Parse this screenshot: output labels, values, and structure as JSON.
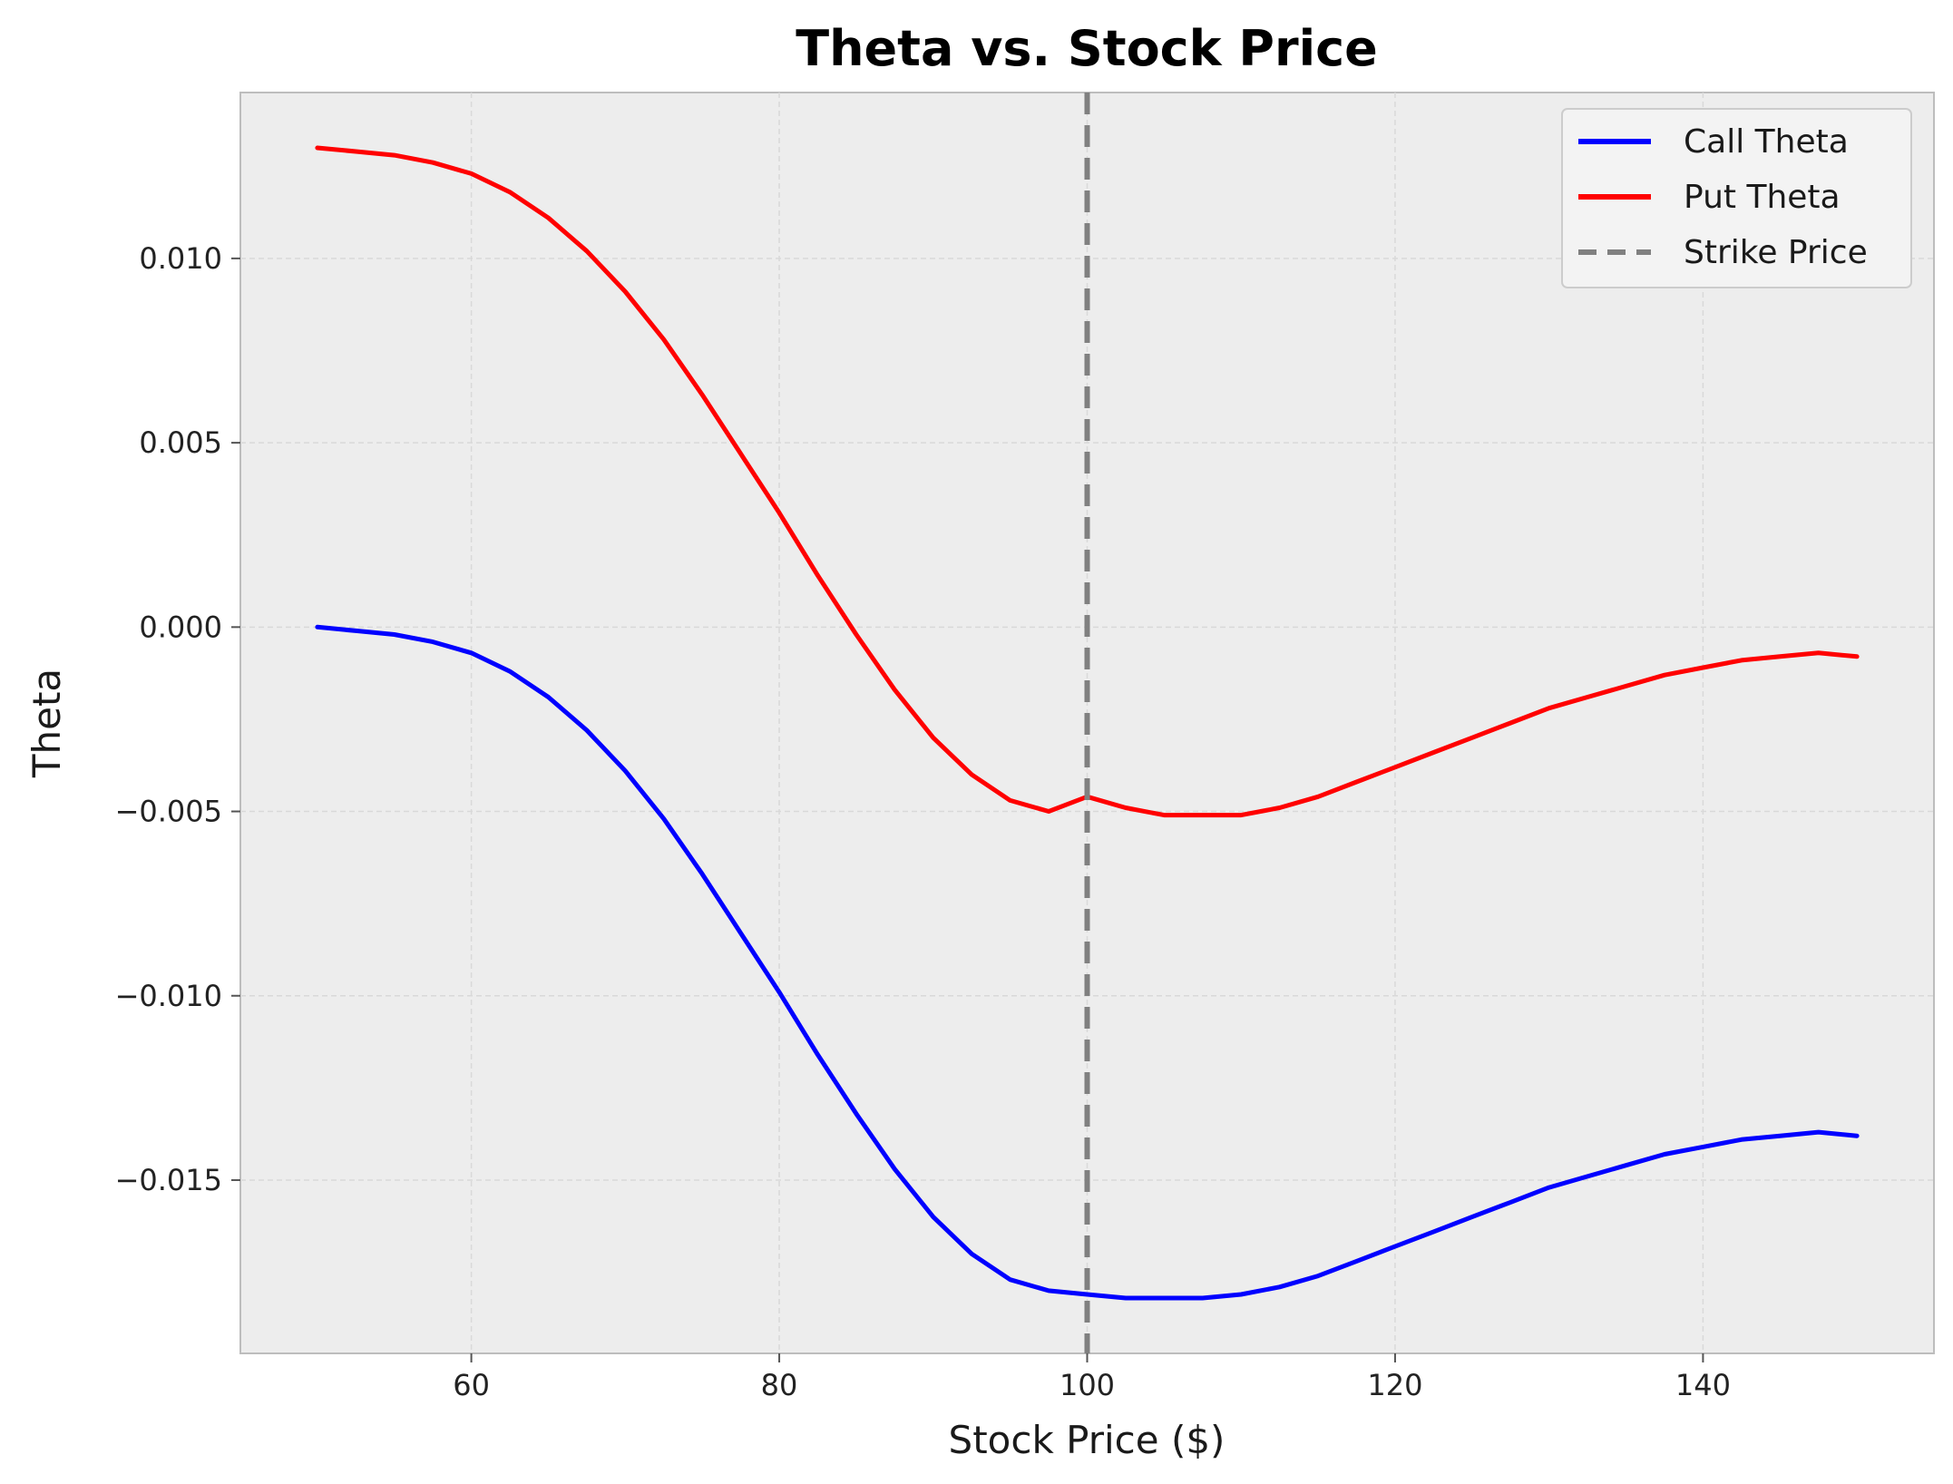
{
  "chart_data": {
    "type": "line",
    "title": "Theta vs. Stock Price",
    "xlabel": "Stock Price ($)",
    "ylabel": "Theta",
    "xlim": [
      45,
      155
    ],
    "ylim": [
      -0.0197,
      0.0145
    ],
    "xticks": [
      {
        "value": 60,
        "label": "60"
      },
      {
        "value": 80,
        "label": "80"
      },
      {
        "value": 100,
        "label": "100"
      },
      {
        "value": 120,
        "label": "120"
      },
      {
        "value": 140,
        "label": "140"
      }
    ],
    "yticks": [
      {
        "value": 0.01,
        "label": "0.010"
      },
      {
        "value": 0.005,
        "label": "0.005"
      },
      {
        "value": 0.0,
        "label": "0.000"
      },
      {
        "value": -0.005,
        "label": "−0.005"
      },
      {
        "value": -0.01,
        "label": "−0.010"
      },
      {
        "value": -0.015,
        "label": "−0.015"
      }
    ],
    "grid": true,
    "legend_position": "top-right",
    "x": [
      50,
      52.5,
      55,
      57.5,
      60,
      62.5,
      65,
      67.5,
      70,
      72.5,
      75,
      77.5,
      80,
      82.5,
      85,
      87.5,
      90,
      92.5,
      95,
      97.5,
      100,
      102.5,
      105,
      107.5,
      110,
      112.5,
      115,
      117.5,
      120,
      122.5,
      125,
      127.5,
      130,
      132.5,
      135,
      137.5,
      140,
      142.5,
      145,
      147.5,
      150
    ],
    "series": [
      {
        "name": "Call Theta",
        "color": "#0000ff",
        "values": [
          0.0,
          -0.0001,
          -0.0002,
          -0.0004,
          -0.0007,
          -0.0012,
          -0.0019,
          -0.0028,
          -0.0039,
          -0.0052,
          -0.0067,
          -0.0083,
          -0.0099,
          -0.0116,
          -0.0132,
          -0.0147,
          -0.016,
          -0.017,
          -0.0177,
          -0.018,
          -0.0181,
          -0.0182,
          -0.0182,
          -0.0182,
          -0.0181,
          -0.0179,
          -0.0176,
          -0.0172,
          -0.0168,
          -0.0164,
          -0.016,
          -0.0156,
          -0.0152,
          -0.0149,
          -0.0146,
          -0.0143,
          -0.0141,
          -0.0139,
          -0.0138,
          -0.0137,
          -0.0138
        ]
      },
      {
        "name": "Put Theta",
        "color": "#ff0000",
        "values": [
          0.013,
          0.0129,
          0.0128,
          0.0126,
          0.0123,
          0.0118,
          0.0111,
          0.0102,
          0.0091,
          0.0078,
          0.0063,
          0.0047,
          0.0031,
          0.0014,
          -0.0002,
          -0.0017,
          -0.003,
          -0.004,
          -0.0047,
          -0.005,
          -0.0046,
          -0.0049,
          -0.0051,
          -0.0051,
          -0.0051,
          -0.0049,
          -0.0046,
          -0.0042,
          -0.0038,
          -0.0034,
          -0.003,
          -0.0026,
          -0.0022,
          -0.0019,
          -0.0016,
          -0.0013,
          -0.0011,
          -0.0009,
          -0.0008,
          -0.0007,
          -0.0008
        ]
      },
      {
        "name": "Strike Price",
        "color": "#808080",
        "style": "dashed",
        "x_value": 100
      }
    ]
  }
}
